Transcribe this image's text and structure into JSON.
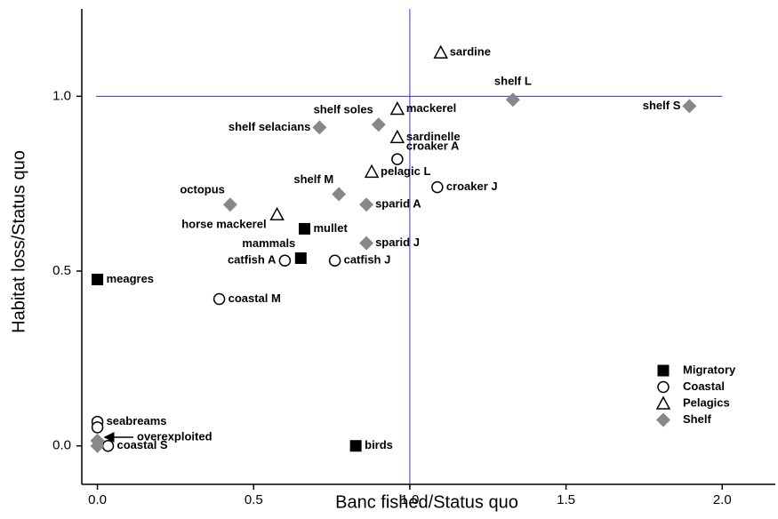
{
  "chart_data": {
    "type": "scatter",
    "x_label": "Banc fished/Status quo",
    "y_label": "Habitat loss/Status quo",
    "xlim": [
      -0.05,
      2.17
    ],
    "ylim": [
      -0.11,
      1.25
    ],
    "xticks": [
      {
        "value": 0,
        "label": "0.0"
      },
      {
        "value": 0.5,
        "label": "0.5"
      },
      {
        "value": 1,
        "label": "1.0"
      },
      {
        "value": 1.5,
        "label": "1.5"
      },
      {
        "value": 2,
        "label": "2.0"
      }
    ],
    "yticks": [
      {
        "value": 0,
        "label": "0.0"
      },
      {
        "value": 0.5,
        "label": "0.5"
      },
      {
        "value": 1,
        "label": "1.0"
      }
    ],
    "reference_lines": {
      "x": 1,
      "y": 1,
      "color": "#3333cc"
    },
    "legend": "lower right",
    "series": [
      {
        "name": "Migratory",
        "marker": "square",
        "color": "#000000",
        "x": [
          0,
          0.663,
          0.651,
          0.827
        ],
        "values": [
          0.476,
          0.621,
          0.537,
          0
        ],
        "labels": [
          "meagres",
          "mullet",
          "mammals",
          "birds"
        ]
      },
      {
        "name": "Coastal",
        "marker": "circle",
        "color": "#000000",
        "x": [
          0,
          0,
          0.034,
          0.96,
          1.088,
          0.6,
          0.76,
          0.39
        ],
        "values": [
          0.069,
          0.053,
          0,
          0.82,
          0.74,
          0.53,
          0.53,
          0.42
        ],
        "labels": [
          "seabreams",
          null,
          "coastal S",
          "croaker A",
          "croaker J",
          "catfish A",
          "catfish J",
          "coastal M"
        ]
      },
      {
        "name": "Pelagics",
        "marker": "triangle",
        "color": "#000000",
        "x": [
          1.099,
          0.96,
          0.96,
          0.878,
          0.575
        ],
        "values": [
          1.125,
          0.964,
          0.883,
          0.784,
          0.662
        ],
        "labels": [
          "sardine",
          "mackerel",
          "sardinelle",
          "pelagic L",
          "horse mackerel"
        ]
      },
      {
        "name": "Shelf",
        "marker": "diamond",
        "color": "#888888",
        "x": [
          1.33,
          1.895,
          0.9,
          0.711,
          0.425,
          0.773,
          0.861,
          0.861,
          0,
          0
        ],
        "values": [
          0.99,
          0.972,
          0.919,
          0.911,
          0.69,
          0.72,
          0.69,
          0.58,
          0.015,
          0
        ],
        "labels": [
          "shelf L",
          "shelf S",
          "shelf soles",
          "shelf selacians",
          "octopus",
          "shelf M",
          "sparid A",
          "sparid J",
          null,
          null
        ]
      }
    ],
    "annotation": "overexploited"
  }
}
